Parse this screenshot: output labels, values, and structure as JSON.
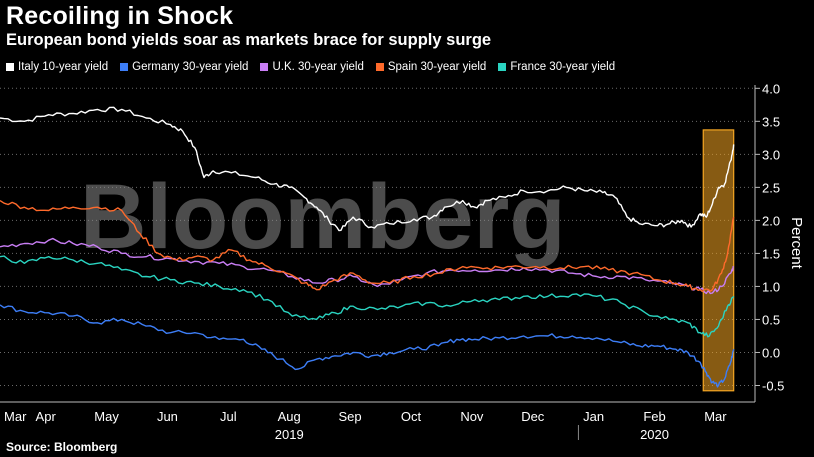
{
  "header": {
    "title": "Recoiling in Shock",
    "subtitle": "European bond yields soar as markets brace for supply surge"
  },
  "footer": {
    "source": "Source: Bloomberg"
  },
  "watermark": "Bloomberg",
  "chart_data": {
    "type": "line",
    "title": "Recoiling in Shock",
    "subtitle": "European bond yields soar as markets brace for supply surge",
    "ylabel": "Percent",
    "ylim": [
      -0.75,
      4.05
    ],
    "yticks": [
      4.0,
      3.5,
      3.0,
      2.5,
      2.0,
      1.5,
      1.0,
      0.5,
      0.0,
      -0.5
    ],
    "ytick_labels": [
      "4.0",
      "3.5",
      "3.0",
      "2.5",
      "2.0",
      "1.5",
      "1.0",
      "0.5",
      "0.0",
      "-0.5"
    ],
    "xlim": [
      0,
      12.4
    ],
    "xticks": [
      {
        "label": "Mar",
        "x": 0.25
      },
      {
        "label": "Apr",
        "x": 0.75
      },
      {
        "label": "May",
        "x": 1.75
      },
      {
        "label": "Jun",
        "x": 2.75
      },
      {
        "label": "Jul",
        "x": 3.75
      },
      {
        "label": "Aug",
        "x": 4.75
      },
      {
        "label": "Sep",
        "x": 5.75
      },
      {
        "label": "Oct",
        "x": 6.75
      },
      {
        "label": "Nov",
        "x": 7.75
      },
      {
        "label": "Dec",
        "x": 8.75
      },
      {
        "label": "Jan",
        "x": 9.75
      },
      {
        "label": "Feb",
        "x": 10.75
      },
      {
        "label": "Mar",
        "x": 11.75
      }
    ],
    "year_labels": [
      {
        "label": "2019",
        "x": 4.75
      },
      {
        "label": "2020",
        "x": 10.75
      }
    ],
    "year_divider_x": 9.5,
    "highlight": {
      "x0": 11.55,
      "x1": 12.05,
      "y0": -0.58,
      "y1": 3.37,
      "color": "#f5a623"
    },
    "series": [
      {
        "name": "Italy 10-year yield",
        "color": "#ffffff",
        "points": [
          [
            0,
            3.55
          ],
          [
            0.4,
            3.5
          ],
          [
            0.8,
            3.6
          ],
          [
            1.2,
            3.62
          ],
          [
            1.6,
            3.68
          ],
          [
            2.0,
            3.68
          ],
          [
            2.4,
            3.55
          ],
          [
            2.8,
            3.45
          ],
          [
            3.0,
            3.35
          ],
          [
            3.2,
            3.1
          ],
          [
            3.35,
            2.65
          ],
          [
            3.5,
            2.75
          ],
          [
            3.8,
            2.72
          ],
          [
            4.2,
            2.65
          ],
          [
            4.5,
            2.55
          ],
          [
            4.75,
            2.5
          ],
          [
            5.0,
            2.35
          ],
          [
            5.2,
            2.2
          ],
          [
            5.4,
            2.0
          ],
          [
            5.6,
            1.85
          ],
          [
            5.8,
            2.05
          ],
          [
            6.1,
            1.9
          ],
          [
            6.4,
            1.95
          ],
          [
            6.8,
            2.02
          ],
          [
            7.1,
            2.05
          ],
          [
            7.3,
            2.2
          ],
          [
            7.6,
            2.3
          ],
          [
            7.8,
            2.2
          ],
          [
            8.0,
            2.3
          ],
          [
            8.3,
            2.35
          ],
          [
            8.6,
            2.45
          ],
          [
            9.0,
            2.45
          ],
          [
            9.3,
            2.5
          ],
          [
            9.6,
            2.45
          ],
          [
            9.9,
            2.42
          ],
          [
            10.1,
            2.35
          ],
          [
            10.3,
            2.05
          ],
          [
            10.5,
            1.95
          ],
          [
            10.8,
            1.92
          ],
          [
            11.0,
            1.95
          ],
          [
            11.2,
            2.0
          ],
          [
            11.35,
            1.9
          ],
          [
            11.5,
            2.1
          ],
          [
            11.6,
            2.05
          ],
          [
            11.7,
            2.25
          ],
          [
            11.8,
            2.5
          ],
          [
            11.9,
            2.55
          ],
          [
            12.0,
            2.9
          ],
          [
            12.05,
            3.15
          ]
        ]
      },
      {
        "name": "Germany 30-year yield",
        "color": "#3d7ef7",
        "points": [
          [
            0,
            0.72
          ],
          [
            0.4,
            0.62
          ],
          [
            0.8,
            0.6
          ],
          [
            1.2,
            0.55
          ],
          [
            1.6,
            0.45
          ],
          [
            2.0,
            0.5
          ],
          [
            2.4,
            0.4
          ],
          [
            2.8,
            0.3
          ],
          [
            3.2,
            0.3
          ],
          [
            3.6,
            0.2
          ],
          [
            4.0,
            0.2
          ],
          [
            4.3,
            0.05
          ],
          [
            4.6,
            -0.1
          ],
          [
            4.9,
            -0.25
          ],
          [
            5.2,
            -0.1
          ],
          [
            5.5,
            -0.05
          ],
          [
            5.8,
            0.0
          ],
          [
            6.1,
            -0.05
          ],
          [
            6.4,
            0.0
          ],
          [
            6.8,
            0.05
          ],
          [
            7.2,
            0.1
          ],
          [
            7.5,
            0.2
          ],
          [
            7.8,
            0.2
          ],
          [
            8.2,
            0.22
          ],
          [
            8.6,
            0.25
          ],
          [
            9.0,
            0.25
          ],
          [
            9.4,
            0.25
          ],
          [
            9.8,
            0.22
          ],
          [
            10.2,
            0.15
          ],
          [
            10.5,
            0.1
          ],
          [
            10.8,
            0.1
          ],
          [
            11.1,
            0.05
          ],
          [
            11.3,
            0.0
          ],
          [
            11.5,
            -0.15
          ],
          [
            11.6,
            -0.3
          ],
          [
            11.7,
            -0.45
          ],
          [
            11.8,
            -0.5
          ],
          [
            11.9,
            -0.4
          ],
          [
            12.0,
            -0.15
          ],
          [
            12.05,
            0.05
          ]
        ]
      },
      {
        "name": "U.K. 30-year yield",
        "color": "#c97ef5",
        "points": [
          [
            0,
            1.6
          ],
          [
            0.4,
            1.65
          ],
          [
            0.8,
            1.7
          ],
          [
            1.2,
            1.65
          ],
          [
            1.6,
            1.6
          ],
          [
            2.0,
            1.5
          ],
          [
            2.4,
            1.45
          ],
          [
            2.8,
            1.42
          ],
          [
            3.2,
            1.38
          ],
          [
            3.6,
            1.35
          ],
          [
            4.0,
            1.3
          ],
          [
            4.4,
            1.25
          ],
          [
            4.8,
            1.15
          ],
          [
            5.2,
            1.05
          ],
          [
            5.5,
            1.1
          ],
          [
            5.8,
            1.15
          ],
          [
            6.2,
            1.0
          ],
          [
            6.6,
            1.1
          ],
          [
            7.0,
            1.2
          ],
          [
            7.4,
            1.25
          ],
          [
            7.8,
            1.25
          ],
          [
            8.2,
            1.25
          ],
          [
            8.6,
            1.28
          ],
          [
            9.0,
            1.25
          ],
          [
            9.4,
            1.2
          ],
          [
            9.8,
            1.15
          ],
          [
            10.2,
            1.15
          ],
          [
            10.6,
            1.1
          ],
          [
            11.0,
            1.05
          ],
          [
            11.3,
            1.0
          ],
          [
            11.5,
            0.95
          ],
          [
            11.7,
            0.9
          ],
          [
            11.85,
            1.0
          ],
          [
            12.0,
            1.2
          ],
          [
            12.05,
            1.3
          ]
        ]
      },
      {
        "name": "Spain 30-year yield",
        "color": "#ff6a2b",
        "points": [
          [
            0,
            2.3
          ],
          [
            0.4,
            2.2
          ],
          [
            0.8,
            2.15
          ],
          [
            1.2,
            2.2
          ],
          [
            1.6,
            2.2
          ],
          [
            2.0,
            2.15
          ],
          [
            2.3,
            1.8
          ],
          [
            2.6,
            1.5
          ],
          [
            2.9,
            1.4
          ],
          [
            3.2,
            1.45
          ],
          [
            3.5,
            1.4
          ],
          [
            3.8,
            1.55
          ],
          [
            4.1,
            1.4
          ],
          [
            4.4,
            1.3
          ],
          [
            4.7,
            1.2
          ],
          [
            5.0,
            1.05
          ],
          [
            5.2,
            0.95
          ],
          [
            5.5,
            1.1
          ],
          [
            5.8,
            1.2
          ],
          [
            6.1,
            1.05
          ],
          [
            6.4,
            1.05
          ],
          [
            6.8,
            1.15
          ],
          [
            7.2,
            1.2
          ],
          [
            7.6,
            1.3
          ],
          [
            8.0,
            1.28
          ],
          [
            8.4,
            1.3
          ],
          [
            8.8,
            1.3
          ],
          [
            9.2,
            1.28
          ],
          [
            9.6,
            1.3
          ],
          [
            10.0,
            1.25
          ],
          [
            10.4,
            1.2
          ],
          [
            10.8,
            1.1
          ],
          [
            11.1,
            1.05
          ],
          [
            11.3,
            1.0
          ],
          [
            11.5,
            0.95
          ],
          [
            11.7,
            0.95
          ],
          [
            11.85,
            1.2
          ],
          [
            11.95,
            1.5
          ],
          [
            12.05,
            2.05
          ]
        ]
      },
      {
        "name": "France 30-year yield",
        "color": "#2ad4c1",
        "points": [
          [
            0,
            1.45
          ],
          [
            0.4,
            1.35
          ],
          [
            0.8,
            1.45
          ],
          [
            1.2,
            1.4
          ],
          [
            1.6,
            1.35
          ],
          [
            2.0,
            1.25
          ],
          [
            2.4,
            1.15
          ],
          [
            2.8,
            1.1
          ],
          [
            3.2,
            1.05
          ],
          [
            3.6,
            1.0
          ],
          [
            4.0,
            0.95
          ],
          [
            4.4,
            0.8
          ],
          [
            4.8,
            0.55
          ],
          [
            5.2,
            0.5
          ],
          [
            5.5,
            0.6
          ],
          [
            5.8,
            0.7
          ],
          [
            6.2,
            0.65
          ],
          [
            6.6,
            0.7
          ],
          [
            7.0,
            0.75
          ],
          [
            7.4,
            0.7
          ],
          [
            7.8,
            0.8
          ],
          [
            8.2,
            0.8
          ],
          [
            8.6,
            0.85
          ],
          [
            9.0,
            0.85
          ],
          [
            9.4,
            0.88
          ],
          [
            9.8,
            0.85
          ],
          [
            10.2,
            0.75
          ],
          [
            10.6,
            0.6
          ],
          [
            11.0,
            0.5
          ],
          [
            11.3,
            0.45
          ],
          [
            11.5,
            0.3
          ],
          [
            11.65,
            0.25
          ],
          [
            11.8,
            0.4
          ],
          [
            11.95,
            0.7
          ],
          [
            12.05,
            0.85
          ]
        ]
      }
    ]
  }
}
